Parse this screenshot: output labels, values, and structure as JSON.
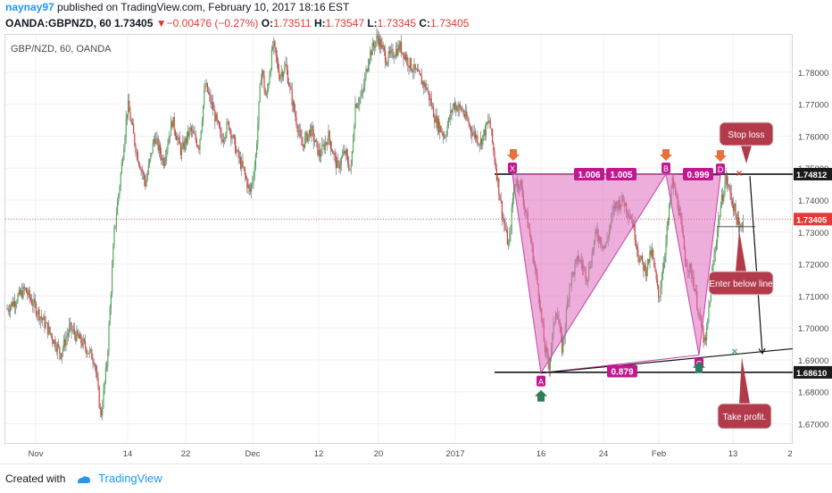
{
  "header": {
    "username": "naynay97",
    "published_text": "published on TradingView.com, February 10, 2017 18:16 EST",
    "symbol": "OANDA:GBPNZD, 60",
    "last": "1.73405",
    "change": "−0.00476 (−0.27%)",
    "o_label": "O:",
    "o_val": "1.73511",
    "h_label": "H:",
    "h_val": "1.73547",
    "l_label": "L:",
    "l_val": "1.73345",
    "c_label": "C:",
    "c_val": "1.73405"
  },
  "footer": {
    "created_with": "Created with",
    "brand": "TradingView"
  },
  "chart_data": {
    "type": "candlestick",
    "title": "GBP/NZD, 60, OANDA",
    "x_ticks": [
      "Nov",
      "14",
      "22",
      "Dec",
      "12",
      "20",
      "2017",
      "16",
      "24",
      "Feb",
      "13",
      "2"
    ],
    "y_ticks": [
      "1.78000",
      "1.77000",
      "1.76000",
      "1.75000",
      "1.74000",
      "1.73000",
      "1.72000",
      "1.71000",
      "1.70000",
      "1.69000",
      "1.68000",
      "1.67000"
    ],
    "ylim": [
      1.664,
      1.7917
    ],
    "grid": true,
    "price_path": [
      [
        0,
        1.706
      ],
      [
        20,
        1.712
      ],
      [
        45,
        1.7
      ],
      [
        60,
        1.692
      ],
      [
        70,
        1.7
      ],
      [
        85,
        1.695
      ],
      [
        98,
        1.69
      ],
      [
        105,
        1.672
      ],
      [
        112,
        1.69
      ],
      [
        120,
        1.73
      ],
      [
        128,
        1.75
      ],
      [
        135,
        1.77
      ],
      [
        145,
        1.755
      ],
      [
        155,
        1.745
      ],
      [
        165,
        1.76
      ],
      [
        175,
        1.752
      ],
      [
        185,
        1.765
      ],
      [
        195,
        1.755
      ],
      [
        205,
        1.762
      ],
      [
        215,
        1.757
      ],
      [
        222,
        1.776
      ],
      [
        230,
        1.769
      ],
      [
        240,
        1.759
      ],
      [
        248,
        1.764
      ],
      [
        258,
        1.754
      ],
      [
        265,
        1.749
      ],
      [
        272,
        1.742
      ],
      [
        278,
        1.752
      ],
      [
        285,
        1.782
      ],
      [
        290,
        1.771
      ],
      [
        298,
        1.789
      ],
      [
        305,
        1.779
      ],
      [
        312,
        1.782
      ],
      [
        320,
        1.77
      ],
      [
        330,
        1.757
      ],
      [
        340,
        1.762
      ],
      [
        350,
        1.754
      ],
      [
        360,
        1.76
      ],
      [
        370,
        1.75
      ],
      [
        378,
        1.755
      ],
      [
        385,
        1.749
      ],
      [
        390,
        1.77
      ],
      [
        398,
        1.773
      ],
      [
        405,
        1.785
      ],
      [
        415,
        1.791
      ],
      [
        425,
        1.784
      ],
      [
        440,
        1.788
      ],
      [
        450,
        1.783
      ],
      [
        460,
        1.779
      ],
      [
        470,
        1.775
      ],
      [
        480,
        1.765
      ],
      [
        490,
        1.76
      ],
      [
        500,
        1.77
      ],
      [
        510,
        1.768
      ],
      [
        520,
        1.762
      ],
      [
        530,
        1.758
      ],
      [
        540,
        1.765
      ],
      [
        550,
        1.745
      ],
      [
        555,
        1.735
      ],
      [
        562,
        1.725
      ],
      [
        568,
        1.746
      ],
      [
        575,
        1.745
      ],
      [
        585,
        1.73
      ],
      [
        595,
        1.712
      ],
      [
        602,
        1.694
      ],
      [
        607,
        1.688
      ],
      [
        615,
        1.707
      ],
      [
        622,
        1.693
      ],
      [
        630,
        1.714
      ],
      [
        640,
        1.722
      ],
      [
        650,
        1.716
      ],
      [
        660,
        1.73
      ],
      [
        670,
        1.725
      ],
      [
        680,
        1.738
      ],
      [
        690,
        1.74
      ],
      [
        700,
        1.734
      ],
      [
        708,
        1.722
      ],
      [
        715,
        1.718
      ],
      [
        722,
        1.724
      ],
      [
        730,
        1.709
      ],
      [
        738,
        1.727
      ],
      [
        745,
        1.746
      ],
      [
        752,
        1.738
      ],
      [
        760,
        1.721
      ],
      [
        768,
        1.716
      ],
      [
        775,
        1.704
      ],
      [
        782,
        1.694
      ],
      [
        790,
        1.718
      ],
      [
        798,
        1.736
      ],
      [
        805,
        1.747
      ],
      [
        812,
        1.74
      ],
      [
        820,
        1.731
      ],
      [
        825,
        1.734
      ]
    ],
    "horizontal_lines": [
      {
        "y": 1.74812,
        "label": "1.74812"
      },
      {
        "y": 1.6861,
        "label": "1.68610"
      }
    ],
    "last_price_line": {
      "y": 1.73405,
      "label": "1.73405"
    },
    "pattern_points": [
      {
        "x": "12-Jan",
        "y": 1.7481
      },
      {
        "x": "16-Jan",
        "y": 1.6859
      },
      {
        "x": "Feb 1",
        "y": 1.7481
      },
      {
        "x": "Feb 7",
        "y": 1.6915
      },
      {
        "x": "Feb 10",
        "y": 1.7478
      }
    ],
    "ratio_labels": [
      "1.006",
      "1.005",
      "0.999",
      "0.879"
    ],
    "point_labels": [
      "X",
      "A",
      "B",
      "C",
      "D"
    ],
    "annotations": [
      "Stop loss",
      "Enter below line",
      "Take profit."
    ]
  }
}
